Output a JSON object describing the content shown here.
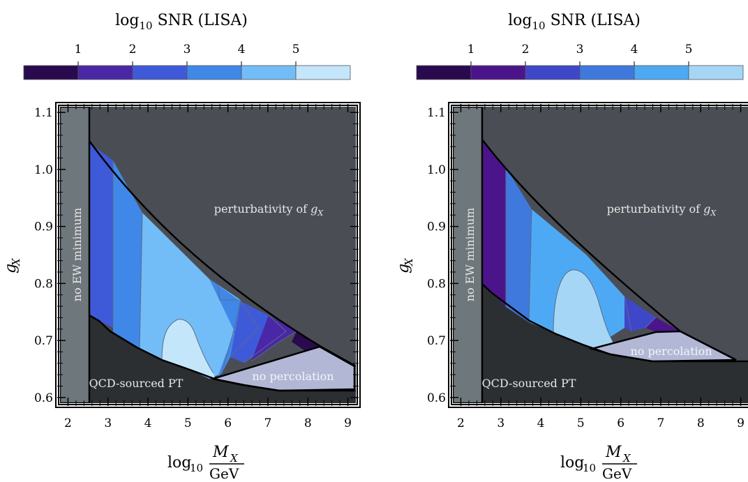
{
  "chart_data": [
    {
      "type": "contour",
      "colorbar": {
        "label_main": "log",
        "label_sub": "10",
        "label_rest": " SNR (LISA)",
        "ticks": [
          "1",
          "2",
          "3",
          "4",
          "5"
        ],
        "colors": [
          "#2a0a4e",
          "#4a27a6",
          "#3f5ad8",
          "#3f88e8",
          "#72bdf7",
          "#c4e6fb"
        ]
      },
      "xlabel": {
        "prefix": "log",
        "sub": "10",
        "num": "M",
        "num_sub": "X",
        "den": "GeV"
      },
      "ylabel": {
        "main": "g",
        "sub": "X"
      },
      "xlim": [
        1.8,
        9.2
      ],
      "ylim": [
        0.59,
        1.11
      ],
      "x_ticks": [
        "2",
        "3",
        "4",
        "5",
        "6",
        "7",
        "8",
        "9"
      ],
      "y_ticks": [
        "0.6",
        "0.7",
        "0.8",
        "0.9",
        "1.0",
        "1.1"
      ],
      "regions": {
        "no_ew": "no EW minimum",
        "perturb_main": "perturbativity of ",
        "perturb_sym": "g",
        "perturb_sub": "X",
        "qcd": "QCD-sourced PT",
        "noperc": "no percolation"
      },
      "region_colors": {
        "perturb": "#4a4e54",
        "qcd": "#2c2f32",
        "no_ew": "#6e777b",
        "noperc": "#b1b7d4"
      }
    },
    {
      "type": "contour",
      "colorbar": {
        "label_main": "log",
        "label_sub": "10",
        "label_rest": " SNR (LISA)",
        "ticks": [
          "1",
          "2",
          "3",
          "4",
          "5"
        ],
        "colors": [
          "#2a0a4e",
          "#4c148a",
          "#3f47c9",
          "#3f79de",
          "#4ea9f4",
          "#a6d6f6"
        ]
      },
      "xlabel": {
        "prefix": "log",
        "sub": "10",
        "num": "M",
        "num_sub": "X",
        "den": "GeV"
      },
      "ylabel": {
        "main": "g",
        "sub": "X"
      },
      "xlim": [
        1.8,
        9.2
      ],
      "ylim": [
        0.59,
        1.11
      ],
      "x_ticks": [
        "2",
        "3",
        "4",
        "5",
        "6",
        "7",
        "8",
        "9"
      ],
      "y_ticks": [
        "0.6",
        "0.7",
        "0.8",
        "0.9",
        "1.0",
        "1.1"
      ],
      "regions": {
        "no_ew": "no EW minimum",
        "perturb_main": "perturbativity of ",
        "perturb_sym": "g",
        "perturb_sub": "X",
        "qcd": "QCD-sourced PT",
        "noperc": "no percolation"
      },
      "region_colors": {
        "perturb": "#4a4e54",
        "qcd": "#2c2f32",
        "no_ew": "#6e777b",
        "noperc": "#b1b7d4"
      }
    }
  ]
}
